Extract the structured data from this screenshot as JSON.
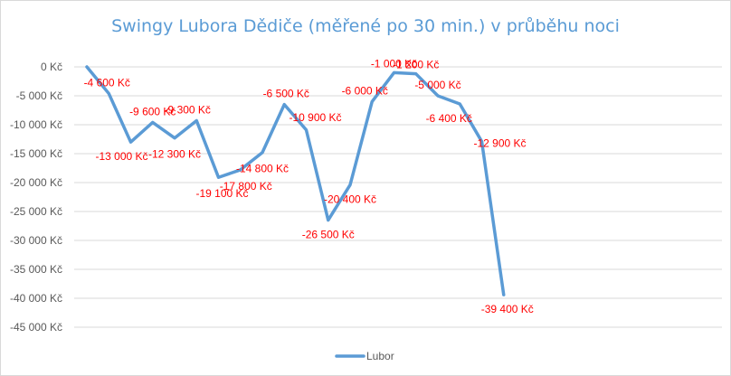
{
  "chart_data": {
    "type": "line",
    "title": "Swingy Lubora Dědiče (měřené po 30 min.) v průběhu noci",
    "xlabel": "",
    "ylabel": "",
    "ylim": [
      -45000,
      0
    ],
    "ytick_step": 5000,
    "y_tick_labels": [
      "0 Kč",
      "-5 000 Kč",
      "-10 000 Kč",
      "-15 000 Kč",
      "-20 000 Kč",
      "-25 000 Kč",
      "-30 000 Kč",
      "-35 000 Kč",
      "-40 000 Kč",
      "-45 000 Kč"
    ],
    "grid": true,
    "legend": "bottom",
    "series": [
      {
        "name": "Lubor",
        "color": "#5b9bd5",
        "values": [
          0,
          -4600,
          -13000,
          -9600,
          -12300,
          -9300,
          -19100,
          -17800,
          -14800,
          -6500,
          -10900,
          -26500,
          -20400,
          -6000,
          -1000,
          -1200,
          -5000,
          -6400,
          -12900,
          -39400
        ],
        "data_labels": [
          "",
          "-4 600 Kč",
          "-13 000 Kč",
          "-9 600 Kč",
          "-12 300 Kč",
          "-9 300 Kč",
          "-19 100 Kč",
          "-17 800 Kč",
          "-14 800 Kč",
          "-6 500 Kč",
          "-10 900 Kč",
          "-26 500 Kč",
          "-20 400 Kč",
          "-6 000 Kč",
          "-1 000 Kč",
          "-1 200 Kč",
          "-5 000 Kč",
          "-6 400 Kč",
          "-12 900 Kč",
          "-39 400 Kč"
        ],
        "label_color": "#ff0000"
      }
    ]
  }
}
